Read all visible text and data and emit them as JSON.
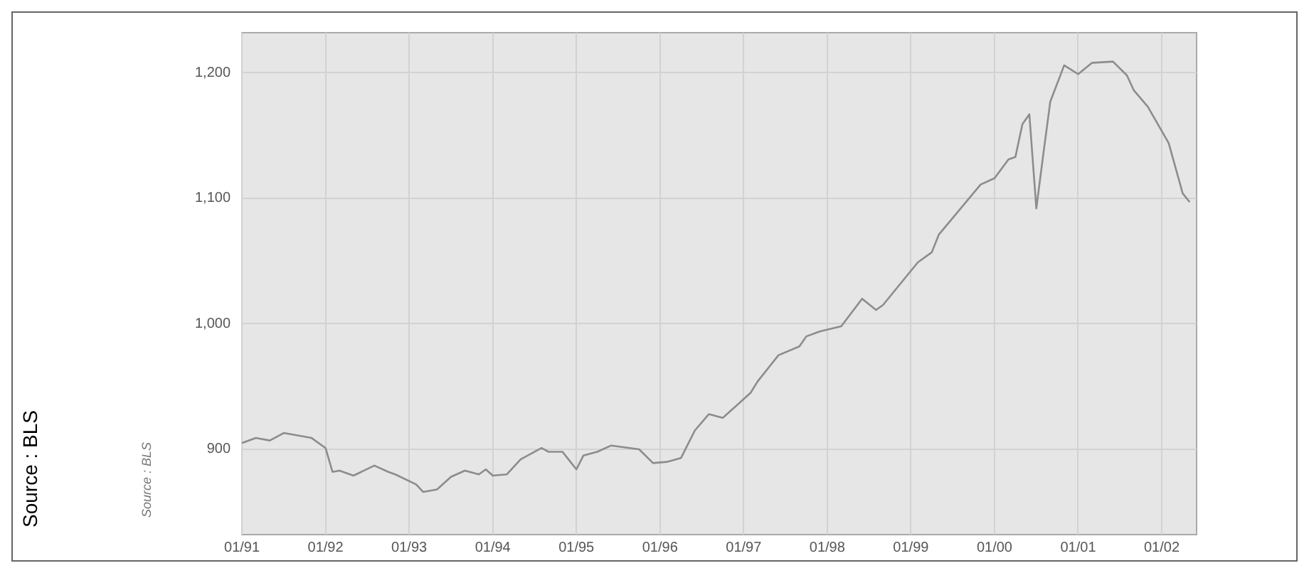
{
  "chart_data": {
    "type": "line",
    "x": [
      "1991-01",
      "1991-03",
      "1991-05",
      "1991-07",
      "1991-09",
      "1991-11",
      "1992-01",
      "1992-02",
      "1992-03",
      "1992-05",
      "1992-08",
      "1992-10",
      "1992-11",
      "1993-02",
      "1993-03",
      "1993-05",
      "1993-07",
      "1993-09",
      "1993-11",
      "1993-12",
      "1994-01",
      "1994-03",
      "1994-05",
      "1994-08",
      "1994-09",
      "1994-11",
      "1994-12",
      "1995-01",
      "1995-02",
      "1995-04",
      "1995-06",
      "1995-10",
      "1995-12",
      "1996-02",
      "1996-04",
      "1996-06",
      "1996-08",
      "1996-10",
      "1996-12",
      "1997-02",
      "1997-03",
      "1997-06",
      "1997-09",
      "1997-10",
      "1997-12",
      "1998-03",
      "1998-06",
      "1998-08",
      "1998-09",
      "1999-02",
      "1999-04",
      "1999-05",
      "1999-08",
      "1999-11",
      "2000-01",
      "2000-03",
      "2000-04",
      "2000-05",
      "2000-06",
      "2000-07",
      "2000-08",
      "2000-09",
      "2000-11",
      "2001-01",
      "2001-03",
      "2001-06",
      "2001-08",
      "2001-09",
      "2001-11",
      "2002-02",
      "2002-04",
      "2002-05"
    ],
    "values": [
      905,
      909,
      907,
      913,
      911,
      909,
      901,
      882,
      883,
      879,
      887,
      882,
      880,
      872,
      866,
      868,
      878,
      883,
      880,
      884,
      879,
      880,
      892,
      901,
      898,
      898,
      891,
      884,
      895,
      898,
      903,
      900,
      889,
      890,
      893,
      915,
      928,
      925,
      935,
      945,
      954,
      975,
      982,
      990,
      994,
      998,
      1020,
      1011,
      1015,
      1049,
      1057,
      1071,
      1091,
      1111,
      1116,
      1131,
      1133,
      1159,
      1167,
      1092,
      1135,
      1177,
      1206,
      1199,
      1208,
      1209,
      1198,
      1186,
      1173,
      1144,
      1104,
      1097
    ],
    "color": "#8c8c8c",
    "xlim": [
      "1991-01",
      "2002-06"
    ],
    "xticks": [
      {
        "value": "1991-01",
        "label": "01/91"
      },
      {
        "value": "1992-01",
        "label": "01/92"
      },
      {
        "value": "1993-01",
        "label": "01/93"
      },
      {
        "value": "1994-01",
        "label": "01/94"
      },
      {
        "value": "1995-01",
        "label": "01/95"
      },
      {
        "value": "1996-01",
        "label": "01/96"
      },
      {
        "value": "1997-01",
        "label": "01/97"
      },
      {
        "value": "1998-01",
        "label": "01/98"
      },
      {
        "value": "1999-01",
        "label": "01/99"
      },
      {
        "value": "2000-01",
        "label": "01/00"
      },
      {
        "value": "2001-01",
        "label": "01/01"
      },
      {
        "value": "2002-01",
        "label": "01/02"
      }
    ],
    "ylim": [
      832,
      1232
    ],
    "yticks": [
      {
        "value": 900,
        "label": "900"
      },
      {
        "value": 1000,
        "label": "1,000"
      },
      {
        "value": 1100,
        "label": "1,100"
      },
      {
        "value": 1200,
        "label": "1,200"
      }
    ],
    "grid": true,
    "marker": "none",
    "line_style": "solid",
    "annotations": [
      "Source : BLS",
      "Source : BLS"
    ]
  }
}
